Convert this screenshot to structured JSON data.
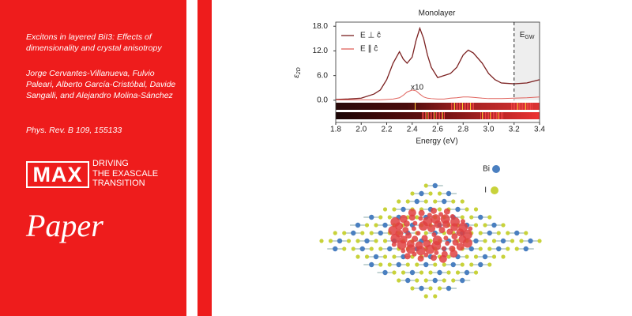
{
  "left_panel": {
    "title": "Excitons in layered BiI3: Effects of dimensionality and crystal anisotropy",
    "authors": "Jorge Cervantes-Villanueva, Fulvio Paleari, Alberto García-Cristóbal, Davide Sangalli, and Alejandro Molina-Sánchez",
    "journal": "Phys. Rev. B 109, 155133",
    "logo": "MAX",
    "tagline": [
      "DRIVING",
      "THE EXASCALE",
      "TRANSITION"
    ],
    "label": "Paper"
  },
  "structure_legend": [
    "Bi",
    "I"
  ],
  "chart_data": {
    "type": "line",
    "title": "Monolayer",
    "x_label": "Energy (eV)",
    "y_label": "ε",
    "y_label_sub": "2D",
    "x": [
      1.8,
      1.9,
      2.0,
      2.1,
      2.15,
      2.2,
      2.25,
      2.3,
      2.33,
      2.36,
      2.4,
      2.43,
      2.46,
      2.49,
      2.52,
      2.55,
      2.6,
      2.65,
      2.7,
      2.75,
      2.8,
      2.84,
      2.88,
      2.95,
      3.0,
      3.05,
      3.1,
      3.2,
      3.3,
      3.4
    ],
    "series": [
      {
        "name": "E ⊥ ĉ",
        "color": "#7b2020",
        "values": [
          0.2,
          0.3,
          0.5,
          1.5,
          2.5,
          5,
          9,
          11.8,
          10,
          9,
          10.5,
          14.5,
          17.5,
          15,
          11,
          8,
          5.5,
          6,
          6.5,
          8,
          11,
          12.2,
          11.5,
          9,
          6.5,
          5,
          4.2,
          4,
          4.2,
          5
        ]
      },
      {
        "name": "E ∥ ĉ",
        "color": "#e0625c",
        "values": [
          0.1,
          0.1,
          0.1,
          0.1,
          0.1,
          0.2,
          0.3,
          0.6,
          1.2,
          2,
          2.5,
          2.3,
          1.5,
          0.8,
          0.5,
          0.4,
          0.3,
          0.3,
          0.5,
          0.6,
          0.8,
          0.8,
          0.7,
          0.5,
          0.4,
          0.4,
          0.4,
          0.5,
          0.6,
          0.8
        ]
      }
    ],
    "annotation": "x10",
    "egw_x": 3.2,
    "egw_label": "E",
    "egw_sub": "GW",
    "xlim": [
      1.8,
      3.4
    ],
    "ylim": [
      -5.4,
      19
    ],
    "xticks": [
      1.8,
      {
        "value": 2,
        "label": "2.0"
      },
      2.2,
      2.4,
      2.6,
      2.8,
      {
        "value": 3,
        "label": "3.0"
      },
      3.2,
      3.4
    ],
    "yticks": [
      {
        "value": 0,
        "label": "0.0"
      },
      {
        "value": 6,
        "label": "6.0"
      },
      {
        "value": 12,
        "label": "12.0"
      },
      {
        "value": 18,
        "label": "18.0"
      }
    ]
  }
}
